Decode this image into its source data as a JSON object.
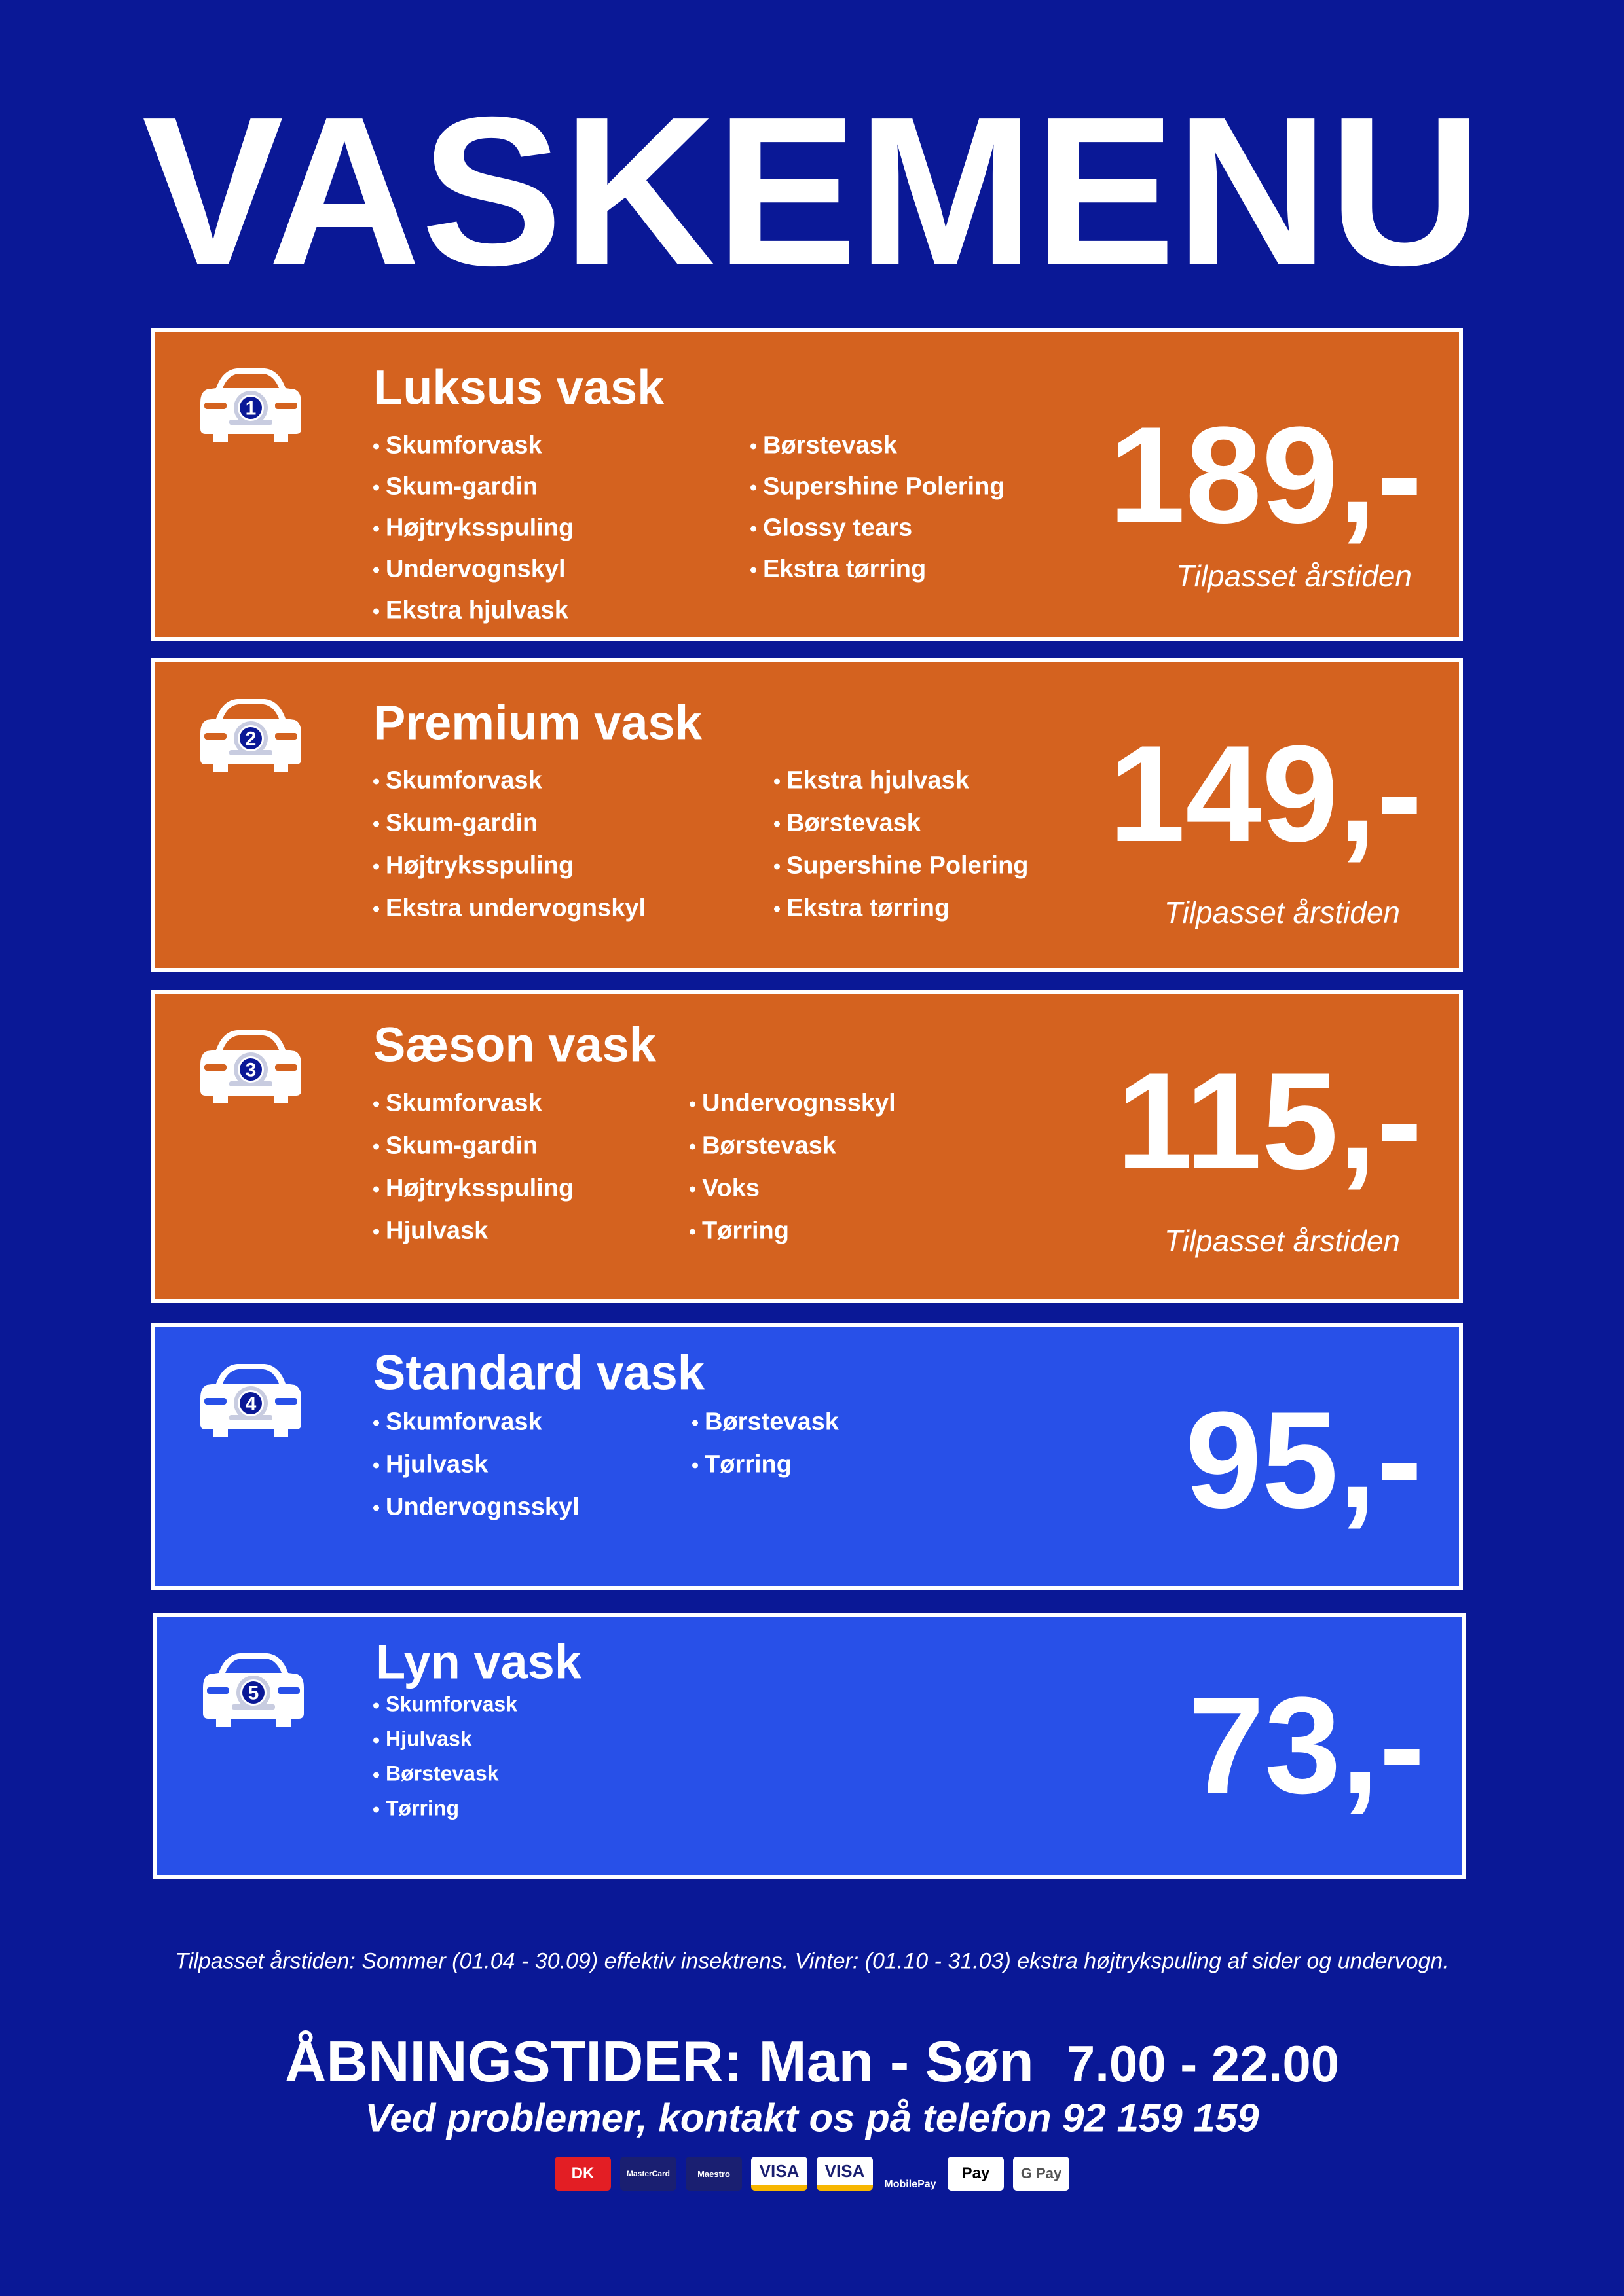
{
  "title": "VASKEMENU",
  "packages": [
    {
      "badge": "1",
      "name": "Luksus vask",
      "columns": [
        [
          "Skumforvask",
          "Skum-gardin",
          "Højtryksspuling",
          "Undervognskyl",
          "Ekstra hjulvask"
        ],
        [
          "Børstevask",
          "Supershine Polering",
          "Glossy tears",
          "Ekstra tørring"
        ]
      ],
      "price": "189,-",
      "note": "Tilpasset årstiden"
    },
    {
      "badge": "2",
      "name": "Premium vask",
      "columns": [
        [
          "Skumforvask",
          "Skum-gardin",
          "Højtryksspuling",
          "Ekstra undervognskyl"
        ],
        [
          "Ekstra hjulvask",
          "Børstevask",
          "Supershine Polering",
          "Ekstra tørring"
        ]
      ],
      "price": "149,-",
      "note": "Tilpasset årstiden"
    },
    {
      "badge": "3",
      "name": "Sæson vask",
      "columns": [
        [
          "Skumforvask",
          "Skum-gardin",
          "Højtryksspuling",
          "Hjulvask"
        ],
        [
          "Undervognsskyl",
          "Børstevask",
          "Voks",
          "Tørring"
        ]
      ],
      "price": "115,-",
      "note": "Tilpasset årstiden"
    },
    {
      "badge": "4",
      "name": "Standard vask",
      "columns": [
        [
          "Skumforvask",
          "Hjulvask",
          "Undervognsskyl"
        ],
        [
          "Børstevask",
          "Tørring"
        ]
      ],
      "price": "95,-"
    },
    {
      "badge": "5",
      "name": "Lyn vask",
      "columns": [
        [
          "Skumforvask",
          "Hjulvask",
          "Børstevask",
          "Tørring"
        ]
      ],
      "price": "73,-"
    }
  ],
  "footnote": "Tilpasset årstiden: Sommer (01.04 - 30.09) effektiv insektrens. Vinter: (01.10 - 31.03) ekstra højtrykspuling af sider og undervogn.",
  "hours": {
    "label": "ÅBNINGSTIDER: Man - Søn",
    "time": "7.00 - 22.00"
  },
  "contact": "Ved problemer, kontakt os på telefon 92 159 159",
  "payment_methods": [
    "DK",
    "MasterCard",
    "Maestro",
    "VISA",
    "VISA",
    "MobilePay",
    "Pay",
    "G Pay"
  ]
}
